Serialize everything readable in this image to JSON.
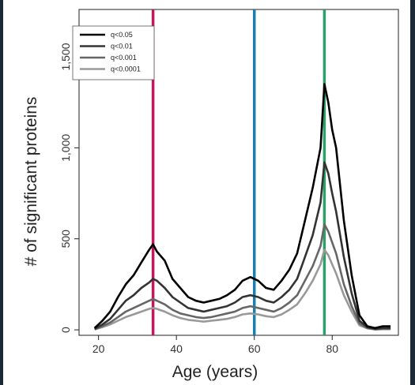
{
  "chart_data": {
    "type": "line",
    "title": "",
    "xlabel": "Age (years)",
    "ylabel": "# of significant proteins",
    "xlim": [
      15,
      97
    ],
    "ylim": [
      -30,
      1760
    ],
    "x_ticks": [
      20,
      40,
      60,
      80
    ],
    "x_tick_labels": [
      "20",
      "40",
      "60",
      "80"
    ],
    "y_ticks": [
      0,
      500,
      1000,
      1500
    ],
    "y_tick_labels": [
      "0",
      "500",
      "1,000",
      "1,500"
    ],
    "grid": false,
    "legend_position": "top-left",
    "vertical_lines": [
      {
        "x": 34,
        "color": "#c2185b"
      },
      {
        "x": 60,
        "color": "#1a7fb0"
      },
      {
        "x": 78,
        "color": "#2e9e6a"
      }
    ],
    "x": [
      19,
      21,
      23,
      25,
      27,
      29,
      31,
      33,
      34,
      35,
      37,
      39,
      41,
      43,
      45,
      47,
      49,
      51,
      53,
      55,
      57,
      59,
      61,
      63,
      65,
      67,
      69,
      71,
      73,
      75,
      77,
      78,
      79,
      80,
      81,
      83,
      85,
      87,
      89,
      91,
      93,
      95
    ],
    "series": [
      {
        "name": "q<0.05",
        "color": "#000000",
        "values": [
          10,
          50,
          100,
          180,
          250,
          300,
          370,
          440,
          470,
          430,
          380,
          280,
          230,
          180,
          160,
          150,
          160,
          170,
          190,
          220,
          270,
          290,
          270,
          230,
          220,
          270,
          330,
          420,
          600,
          780,
          1000,
          1350,
          1250,
          1100,
          1000,
          600,
          300,
          80,
          20,
          10,
          20,
          20
        ]
      },
      {
        "name": "q<0.01",
        "color": "#333333",
        "values": [
          5,
          30,
          60,
          110,
          160,
          190,
          230,
          260,
          280,
          270,
          230,
          180,
          150,
          120,
          110,
          100,
          110,
          120,
          130,
          150,
          180,
          190,
          180,
          160,
          150,
          180,
          220,
          280,
          400,
          520,
          700,
          920,
          860,
          750,
          650,
          400,
          200,
          50,
          15,
          5,
          10,
          10
        ]
      },
      {
        "name": "q<0.001",
        "color": "#666666",
        "values": [
          3,
          20,
          40,
          70,
          100,
          120,
          140,
          160,
          170,
          160,
          140,
          110,
          90,
          80,
          70,
          65,
          70,
          80,
          90,
          100,
          120,
          130,
          120,
          110,
          100,
          120,
          150,
          190,
          270,
          350,
          460,
          580,
          540,
          480,
          420,
          250,
          130,
          35,
          10,
          3,
          5,
          5
        ]
      },
      {
        "name": "q<0.0001",
        "color": "#999999",
        "values": [
          2,
          15,
          30,
          50,
          70,
          85,
          100,
          115,
          120,
          115,
          100,
          80,
          65,
          55,
          50,
          45,
          50,
          55,
          60,
          70,
          85,
          90,
          85,
          75,
          70,
          85,
          110,
          140,
          200,
          270,
          360,
          440,
          410,
          360,
          310,
          190,
          100,
          25,
          8,
          2,
          4,
          4
        ]
      }
    ]
  }
}
